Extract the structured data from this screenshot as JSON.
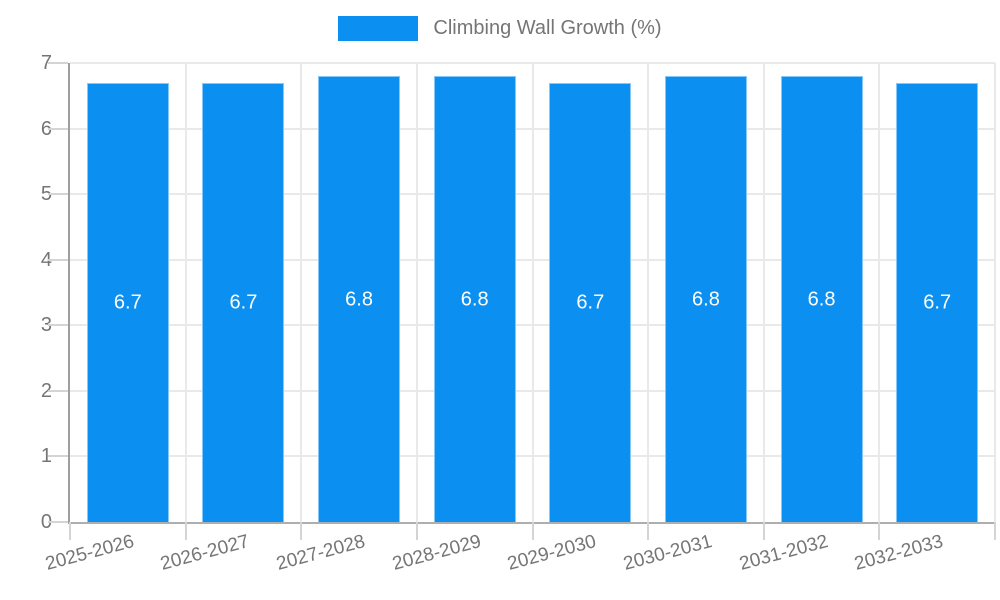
{
  "legend": {
    "label": "Climbing Wall Growth (%)"
  },
  "colors": {
    "bar": "#0b90f2",
    "bar_edge": "rgba(255,255,255,0.5)",
    "grid": "#e9e9e9",
    "axis": "#9e9e9e",
    "tick": "#d4d4d4",
    "text": "#757575",
    "value_label": "#ffffff",
    "background": "#ffffff"
  },
  "chart_data": {
    "type": "bar",
    "title": "Climbing Wall Growth (%)",
    "categories": [
      "2025-2026",
      "2026-2027",
      "2027-2028",
      "2028-2029",
      "2029-2030",
      "2030-2031",
      "2031-2032",
      "2032-2033"
    ],
    "values": [
      6.7,
      6.7,
      6.8,
      6.8,
      6.7,
      6.8,
      6.8,
      6.7
    ],
    "value_labels": [
      "6.7",
      "6.7",
      "6.8",
      "6.8",
      "6.7",
      "6.8",
      "6.8",
      "6.7"
    ],
    "xlabel": "",
    "ylabel": "",
    "ylim": [
      0,
      7
    ],
    "yticks": [
      0,
      1,
      2,
      3,
      4,
      5,
      6,
      7
    ],
    "grid": true,
    "legend_position": "top-center",
    "x_label_rotation_deg": -15
  }
}
